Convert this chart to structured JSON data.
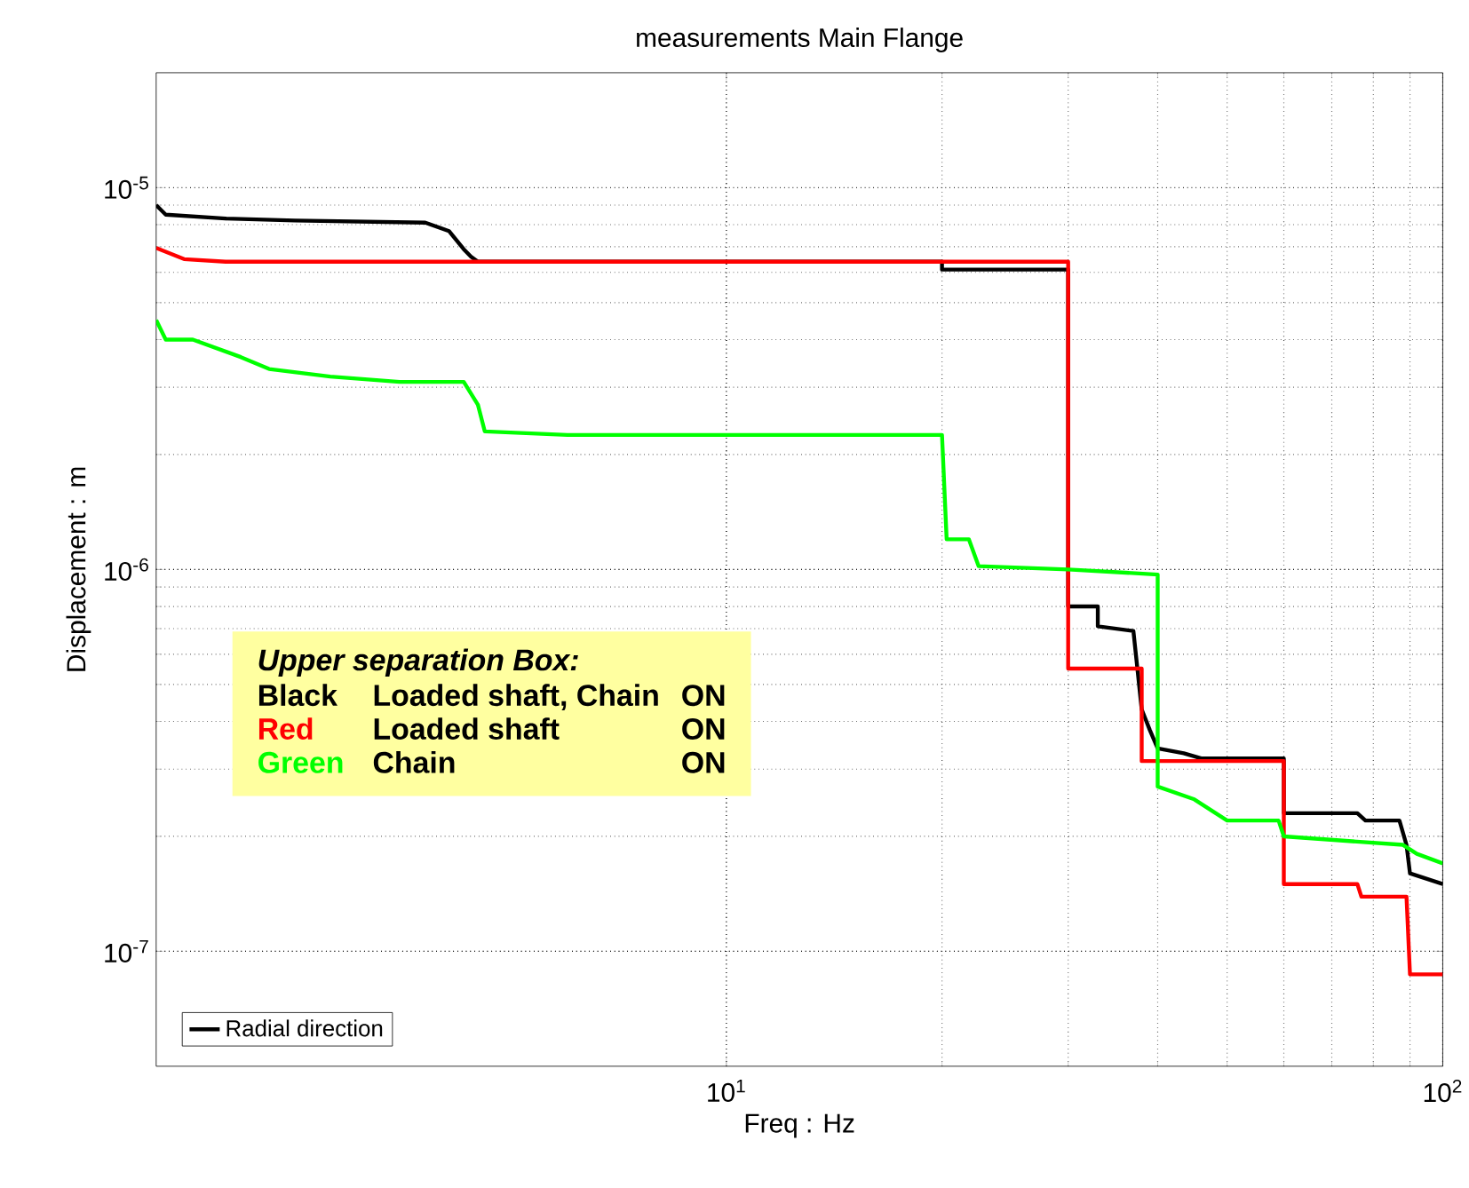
{
  "chart_data": {
    "type": "line",
    "title": "measurements Main Flange",
    "xlabel": "Freq : Hz",
    "ylabel": "Displacement : m",
    "log": "xy",
    "grid": true,
    "legend": "bottom left",
    "marker": "none",
    "line_style": "solid",
    "xlim": [
      1.6,
      100
    ],
    "ylim": [
      5e-08,
      2e-05
    ],
    "xticks": [
      {
        "value": 10,
        "label": "10$^{1}$"
      },
      {
        "value": 100,
        "label": "10$^{2}$"
      }
    ],
    "yticks": [
      {
        "value": 1e-07,
        "label": "10$^{-7}$"
      },
      {
        "value": 1e-06,
        "label": "10$^{-6}$"
      },
      {
        "value": 1e-05,
        "label": "10$^{-5}$"
      }
    ],
    "annotations": [
      "Upper separation Box:",
      "Black",
      "Loaded shaft, Chain",
      "ON",
      "Red",
      "Loaded shaft",
      "ON",
      "Green",
      "Chain",
      "ON"
    ],
    "series": [
      {
        "name": "Radial direction",
        "color": "#000000",
        "x": [
          1.6,
          1.65,
          2.0,
          2.5,
          3.8,
          4.1,
          4.3,
          4.4,
          4.5,
          20,
          20,
          30,
          30,
          33,
          33,
          37,
          38,
          39,
          40,
          43.5,
          46,
          60,
          60,
          76,
          78,
          87,
          89,
          90,
          100
        ],
        "values": [
          9e-06,
          8.5e-06,
          8.3e-06,
          8.2e-06,
          8.1e-06,
          7.7e-06,
          6.9e-06,
          6.6e-06,
          6.4e-06,
          6.4e-06,
          6.1e-06,
          6.1e-06,
          8e-07,
          8e-07,
          7.1e-07,
          6.9e-07,
          4.3e-07,
          3.8e-07,
          3.4e-07,
          3.3e-07,
          3.2e-07,
          3.2e-07,
          2.3e-07,
          2.3e-07,
          2.2e-07,
          2.2e-07,
          1.9e-07,
          1.6e-07,
          1.5e-07
        ]
      },
      {
        "color": "#ff0000",
        "x": [
          1.6,
          1.75,
          2,
          30,
          30,
          38,
          38,
          60,
          60,
          76,
          77,
          89,
          90,
          100
        ],
        "values": [
          6.95e-06,
          6.5e-06,
          6.4e-06,
          6.4e-06,
          5.5e-07,
          5.5e-07,
          3.15e-07,
          3.15e-07,
          1.5e-07,
          1.5e-07,
          1.39e-07,
          1.39e-07,
          8.7e-08,
          8.7e-08
        ]
      },
      {
        "color": "#00ff00",
        "x": [
          1.6,
          1.65,
          1.8,
          2.1,
          2.3,
          2.8,
          3.5,
          4.3,
          4.5,
          4.6,
          6,
          20,
          20.3,
          21.8,
          22.5,
          30,
          40,
          40,
          45,
          50,
          59,
          60,
          88,
          92,
          100
        ],
        "values": [
          4.5e-06,
          4e-06,
          4e-06,
          3.6e-06,
          3.35e-06,
          3.2e-06,
          3.1e-06,
          3.1e-06,
          2.7e-06,
          2.3e-06,
          2.25e-06,
          2.25e-06,
          1.2e-06,
          1.2e-06,
          1.02e-06,
          1e-06,
          9.7e-07,
          2.7e-07,
          2.5e-07,
          2.2e-07,
          2.2e-07,
          2e-07,
          1.9e-07,
          1.8e-07,
          1.7e-07
        ]
      }
    ]
  }
}
